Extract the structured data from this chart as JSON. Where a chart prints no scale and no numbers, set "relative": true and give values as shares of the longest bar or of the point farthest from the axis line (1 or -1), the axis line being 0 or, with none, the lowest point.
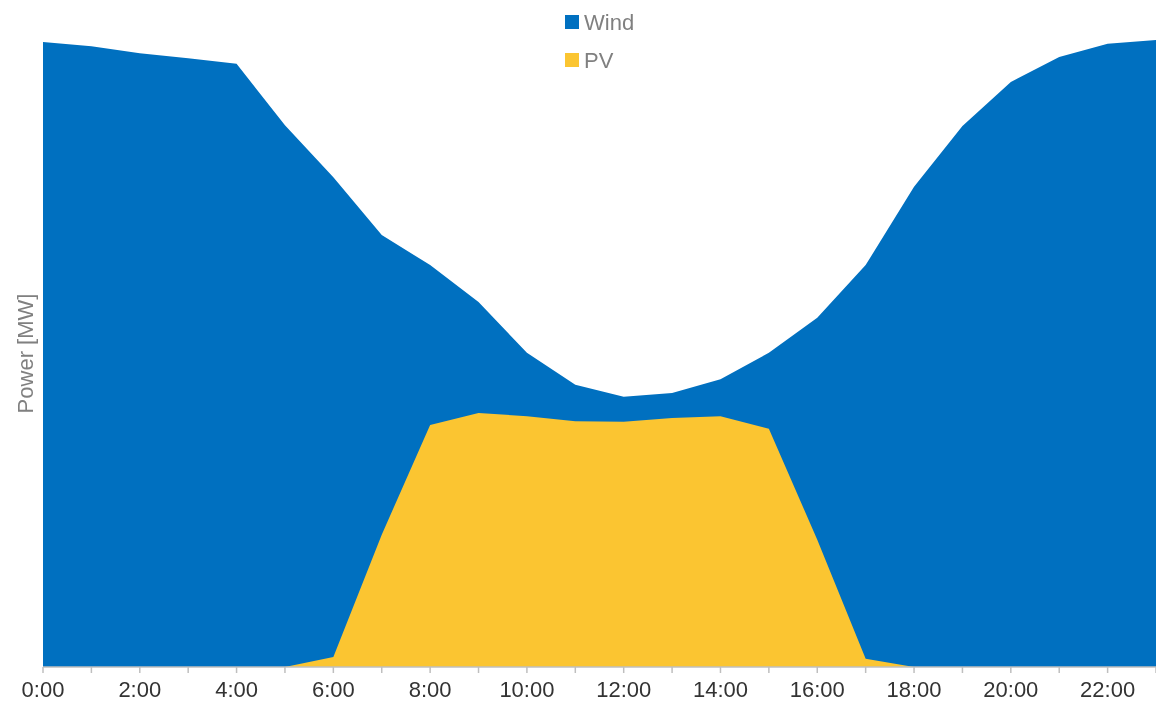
{
  "chart_data": {
    "type": "area",
    "relative": true,
    "ylabel": "Power [MW]",
    "legend": "top",
    "x": [
      0,
      1,
      2,
      3,
      4,
      5,
      6,
      7,
      8,
      9,
      10,
      11,
      12,
      13,
      14,
      15,
      16,
      17,
      18,
      19,
      20,
      21,
      22,
      23
    ],
    "xlim": [
      0,
      23
    ],
    "xticks": [
      {
        "value": 0,
        "label": "0:00"
      },
      {
        "value": 1,
        "label": null
      },
      {
        "value": 2,
        "label": "2:00"
      },
      {
        "value": 3,
        "label": null
      },
      {
        "value": 4,
        "label": "4:00"
      },
      {
        "value": 5,
        "label": null
      },
      {
        "value": 6,
        "label": "6:00"
      },
      {
        "value": 7,
        "label": null
      },
      {
        "value": 8,
        "label": "8:00"
      },
      {
        "value": 9,
        "label": null
      },
      {
        "value": 10,
        "label": "10:00"
      },
      {
        "value": 11,
        "label": null
      },
      {
        "value": 12,
        "label": "12:00"
      },
      {
        "value": 13,
        "label": null
      },
      {
        "value": 14,
        "label": "14:00"
      },
      {
        "value": 15,
        "label": null
      },
      {
        "value": 16,
        "label": "16:00"
      },
      {
        "value": 17,
        "label": null
      },
      {
        "value": 18,
        "label": "18:00"
      },
      {
        "value": 19,
        "label": null
      },
      {
        "value": 20,
        "label": "20:00"
      },
      {
        "value": 21,
        "label": null
      },
      {
        "value": 22,
        "label": "22:00"
      },
      {
        "value": 23,
        "label": null
      }
    ],
    "series": [
      {
        "name": "Wind",
        "color": "#0070c0",
        "values": [
          0.997,
          0.99,
          0.979,
          0.971,
          0.962,
          0.864,
          0.781,
          0.689,
          0.641,
          0.582,
          0.501,
          0.45,
          0.431,
          0.437,
          0.459,
          0.501,
          0.557,
          0.641,
          0.766,
          0.863,
          0.933,
          0.973,
          0.994,
          1
        ]
      },
      {
        "name": "PV",
        "color": "#fbc531",
        "values": [
          0,
          0,
          0,
          0,
          0,
          0,
          0.016,
          0.211,
          0.386,
          0.405,
          0.4,
          0.392,
          0.391,
          0.397,
          0.4,
          0.38,
          0.203,
          0.013,
          0,
          0,
          0,
          0,
          0,
          0
        ]
      }
    ]
  }
}
